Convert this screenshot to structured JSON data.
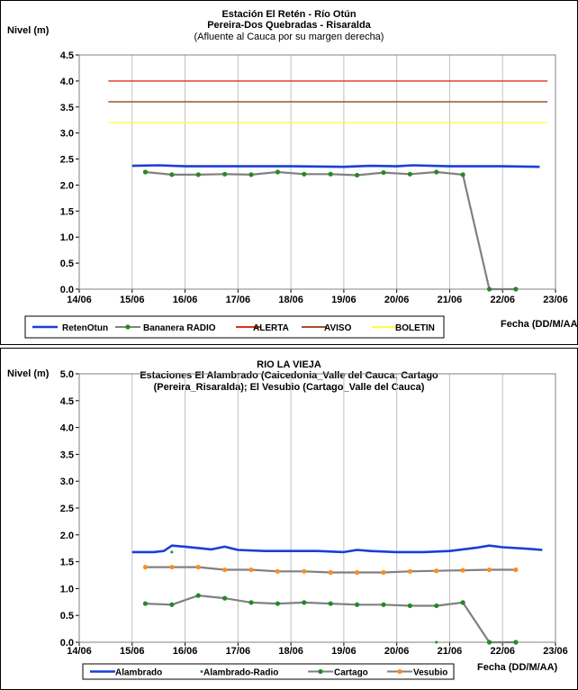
{
  "chart_data": [
    {
      "type": "line",
      "title": "Estación El Retén - Río Otún",
      "subtitle": "Pereira-Dos Quebradas - Risaralda",
      "subtitle2": "(Afluente al Cauca por su margen derecha)",
      "ylabel": "Nivel (m)",
      "xlabel": "Fecha (DD/M/AA)",
      "ylim": [
        0,
        4.5
      ],
      "yticks": [
        "0.0",
        "0.5",
        "1.0",
        "1.5",
        "2.0",
        "2.5",
        "3.0",
        "3.5",
        "4.0",
        "4.5"
      ],
      "xlim": [
        0,
        9
      ],
      "xticks": [
        "14/06",
        "15/06",
        "16/06",
        "17/06",
        "18/06",
        "19/06",
        "20/06",
        "21/06",
        "22/06",
        "23/06"
      ],
      "grid": "vertical",
      "legend_position": "bottom",
      "series": [
        {
          "name": "RetenOtun",
          "color": "#1a3fd6",
          "x": [
            1.0,
            1.5,
            2.0,
            3.0,
            4.0,
            5.0,
            5.5,
            6.0,
            6.3,
            7.0,
            7.5,
            8.0,
            8.7
          ],
          "y": [
            2.37,
            2.38,
            2.36,
            2.36,
            2.36,
            2.35,
            2.37,
            2.36,
            2.38,
            2.36,
            2.36,
            2.36,
            2.35
          ]
        },
        {
          "name": "Bananera RADIO",
          "color": "#808080",
          "marker_color": "#228b22",
          "x": [
            1.25,
            1.75,
            2.25,
            2.75,
            3.25,
            3.75,
            4.25,
            4.75,
            5.25,
            5.75,
            6.25,
            6.75,
            7.25,
            7.75,
            8.25
          ],
          "y": [
            2.25,
            2.2,
            2.2,
            2.21,
            2.2,
            2.25,
            2.21,
            2.21,
            2.19,
            2.24,
            2.21,
            2.25,
            2.2,
            0.0,
            0.0
          ]
        },
        {
          "name": "ALERTA",
          "color": "#e03020",
          "x": [
            0.55,
            8.85
          ],
          "y": [
            4.0,
            4.0
          ]
        },
        {
          "name": "AVISO",
          "color": "#a0522d",
          "x": [
            0.55,
            8.85
          ],
          "y": [
            3.6,
            3.6
          ]
        },
        {
          "name": "BOLETIN",
          "color": "#ffff40",
          "x": [
            0.55,
            8.85
          ],
          "y": [
            3.2,
            3.2
          ]
        }
      ]
    },
    {
      "type": "line",
      "title": "RIO LA VIEJA",
      "subtitle": "Estaciones El Alambrado (Caicedonia_Valle del Cauca; Cartago",
      "subtitle2": "(Pereira_Risaralda);  El Vesubio (Cartago_Valle del Cauca)",
      "ylabel": "Nivel (m)",
      "xlabel": "Fecha (DD/M/AA)",
      "ylim": [
        0,
        5
      ],
      "yticks": [
        "0.0",
        "0.5",
        "1.0",
        "1.5",
        "2.0",
        "2.5",
        "3.0",
        "3.5",
        "4.0",
        "4.5",
        "5.0"
      ],
      "xlim": [
        0,
        9
      ],
      "xticks": [
        "14/06",
        "15/06",
        "16/06",
        "17/06",
        "18/06",
        "19/06",
        "20/06",
        "21/06",
        "22/06",
        "23/06"
      ],
      "grid": "vertical",
      "legend_position": "bottom",
      "series": [
        {
          "name": "Alambrado",
          "color": "#1a3fd6",
          "x": [
            1.0,
            1.4,
            1.6,
            1.75,
            2.0,
            2.5,
            2.75,
            3.0,
            3.5,
            4.0,
            4.5,
            5.0,
            5.25,
            5.5,
            6.0,
            6.5,
            7.0,
            7.5,
            7.75,
            8.0,
            8.5,
            8.75
          ],
          "y": [
            1.68,
            1.68,
            1.7,
            1.8,
            1.78,
            1.73,
            1.78,
            1.72,
            1.7,
            1.7,
            1.7,
            1.68,
            1.72,
            1.7,
            1.68,
            1.68,
            1.7,
            1.76,
            1.8,
            1.77,
            1.74,
            1.72
          ]
        },
        {
          "name": "Alambrado-Radio",
          "color": "#228b22",
          "x": [
            1.75,
            6.75,
            8.25
          ],
          "y": [
            1.68,
            0.0,
            0.0
          ]
        },
        {
          "name": "Cartago",
          "color": "#808080",
          "marker_color": "#228b22",
          "x": [
            1.25,
            1.75,
            2.25,
            2.75,
            3.25,
            3.75,
            4.25,
            4.75,
            5.25,
            5.75,
            6.25,
            6.75,
            7.25,
            7.75,
            8.25
          ],
          "y": [
            0.72,
            0.7,
            0.87,
            0.82,
            0.74,
            0.72,
            0.74,
            0.72,
            0.7,
            0.7,
            0.68,
            0.68,
            0.74,
            0.0,
            0.0
          ]
        },
        {
          "name": "Vesubio",
          "color": "#808080",
          "marker_color": "#ff8c1a",
          "x": [
            1.25,
            1.75,
            2.25,
            2.75,
            3.25,
            3.75,
            4.25,
            4.75,
            5.25,
            5.75,
            6.25,
            6.75,
            7.25,
            7.75,
            8.25
          ],
          "y": [
            1.4,
            1.4,
            1.4,
            1.35,
            1.35,
            1.32,
            1.32,
            1.3,
            1.3,
            1.3,
            1.32,
            1.33,
            1.34,
            1.35,
            1.35
          ]
        }
      ]
    }
  ]
}
